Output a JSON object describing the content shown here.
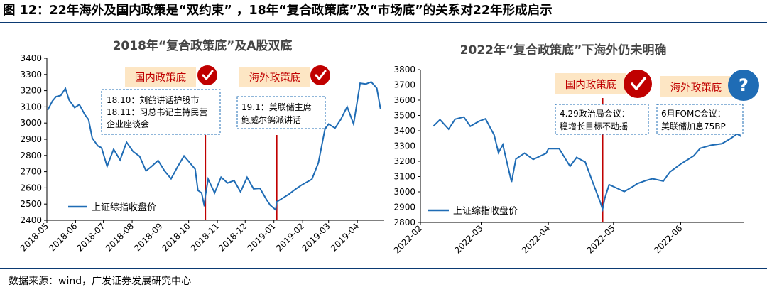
{
  "figure_title": "图 12：22年海外及国内政策是“双约束” ，18年“复合政策底”及“市场底”的关系对22年形成启示",
  "source": "数据来源：wind，广发证券发展研究中心",
  "colors": {
    "line": "#1f6cb5",
    "policy_line": "#c00000",
    "callout_text": "#c00000",
    "callout_bg": "#fde6c4",
    "check": "#c00000",
    "question": "#1f6cb5",
    "rule": "#0b3a73"
  },
  "icons": {
    "check": "check-icon",
    "question": "question-icon"
  },
  "chart_data": [
    {
      "type": "line",
      "title": "2018年“复合政策底”及A股双底",
      "ylim": [
        2400,
        3400
      ],
      "yticks": [
        2400,
        2500,
        2600,
        2700,
        2800,
        2900,
        3000,
        3100,
        3200,
        3300,
        3400
      ],
      "xlim": [
        "2018-05-01",
        "2019-04-30"
      ],
      "xticks": [
        "2018-05",
        "2018-06",
        "2018-07",
        "2018-08",
        "2018-09",
        "2018-10",
        "2018-11",
        "2018-12",
        "2019-01",
        "2019-02",
        "2019-03",
        "2019-04"
      ],
      "legend": "上证综指收盘价",
      "legend_position": "bottom-left",
      "series": [
        {
          "name": "上证综指收盘价",
          "x": [
            "2018-05-02",
            "2018-05-07",
            "2018-05-11",
            "2018-05-16",
            "2018-05-21",
            "2018-05-25",
            "2018-05-31",
            "2018-06-05",
            "2018-06-11",
            "2018-06-15",
            "2018-06-19",
            "2018-06-25",
            "2018-06-29",
            "2018-07-05",
            "2018-07-12",
            "2018-07-19",
            "2018-07-26",
            "2018-08-02",
            "2018-08-09",
            "2018-08-16",
            "2018-08-22",
            "2018-08-29",
            "2018-09-05",
            "2018-09-12",
            "2018-09-19",
            "2018-09-26",
            "2018-10-08",
            "2018-10-11",
            "2018-10-15",
            "2018-10-18",
            "2018-10-19",
            "2018-10-22",
            "2018-10-29",
            "2018-11-05",
            "2018-11-12",
            "2018-11-19",
            "2018-11-26",
            "2018-12-03",
            "2018-12-10",
            "2018-12-17",
            "2018-12-24",
            "2018-12-28",
            "2019-01-03",
            "2019-01-04",
            "2019-01-10",
            "2019-01-17",
            "2019-01-24",
            "2019-01-31",
            "2019-02-11",
            "2019-02-18",
            "2019-02-25",
            "2019-03-01",
            "2019-03-08",
            "2019-03-14",
            "2019-03-21",
            "2019-03-28",
            "2019-04-04",
            "2019-04-10",
            "2019-04-16",
            "2019-04-22",
            "2019-04-26"
          ],
          "values": [
            3081,
            3136,
            3163,
            3170,
            3214,
            3142,
            3095,
            3114,
            3052,
            3021,
            2907,
            2859,
            2847,
            2733,
            2838,
            2772,
            2882,
            2824,
            2795,
            2705,
            2733,
            2769,
            2705,
            2656,
            2730,
            2797,
            2716,
            2584,
            2568,
            2486,
            2550,
            2654,
            2569,
            2666,
            2630,
            2645,
            2575,
            2665,
            2594,
            2597,
            2527,
            2493,
            2464,
            2514,
            2535,
            2560,
            2591,
            2618,
            2653,
            2754,
            2961,
            2994,
            2969,
            3021,
            3101,
            2994,
            3246,
            3241,
            3254,
            3215,
            3086
          ]
        }
      ],
      "policy_lines": [
        {
          "date": "2018-10-19",
          "label": "国内政策底",
          "icon": "check-icon",
          "annotation": [
            "18.10：刘鹤讲话护股市",
            "18.11：习总书记主持民营",
            "企业座谈会"
          ]
        },
        {
          "date": "2019-01-04",
          "label": "海外政策底",
          "icon": "check-icon",
          "annotation": [
            "19.1：美联储主席",
            "鲍威尔鸽派讲话"
          ]
        }
      ]
    },
    {
      "type": "line",
      "title": "2022年“复合政策底”下海外仍未明确",
      "ylim": [
        2800,
        3800
      ],
      "yticks": [
        2800,
        2900,
        3000,
        3100,
        3200,
        3300,
        3400,
        3500,
        3600,
        3700,
        3800
      ],
      "xlim": [
        "2022-02-01",
        "2022-06-30"
      ],
      "xticks": [
        "2022-02",
        "2022-03",
        "2022-04",
        "2022-05",
        "2022-06"
      ],
      "legend": "上证综指收盘价",
      "legend_position": "bottom-left",
      "series": [
        {
          "name": "上证综指收盘价",
          "x": [
            "2022-02-07",
            "2022-02-10",
            "2022-02-14",
            "2022-02-17",
            "2022-02-21",
            "2022-02-24",
            "2022-02-28",
            "2022-03-03",
            "2022-03-07",
            "2022-03-09",
            "2022-03-11",
            "2022-03-15",
            "2022-03-17",
            "2022-03-21",
            "2022-03-25",
            "2022-03-31",
            "2022-04-01",
            "2022-04-06",
            "2022-04-11",
            "2022-04-14",
            "2022-04-18",
            "2022-04-21",
            "2022-04-25",
            "2022-04-26",
            "2022-04-27",
            "2022-04-29",
            "2022-05-06",
            "2022-05-10",
            "2022-05-12",
            "2022-05-16",
            "2022-05-19",
            "2022-05-24",
            "2022-05-27",
            "2022-06-01",
            "2022-06-07",
            "2022-06-10",
            "2022-06-15",
            "2022-06-20",
            "2022-06-24",
            "2022-06-27",
            "2022-06-29"
          ],
          "values": [
            3430,
            3472,
            3410,
            3476,
            3490,
            3429,
            3462,
            3478,
            3372,
            3256,
            3309,
            3064,
            3215,
            3253,
            3212,
            3252,
            3283,
            3283,
            3167,
            3225,
            3195,
            3080,
            2929,
            2886,
            2958,
            3047,
            3002,
            3035,
            3054,
            3074,
            3086,
            3070,
            3130,
            3182,
            3236,
            3285,
            3305,
            3315,
            3349,
            3379,
            3362
          ]
        }
      ],
      "policy_lines": [
        {
          "date": "2022-04-26",
          "label": "国内政策底",
          "icon": "check-icon",
          "annotation": [
            "4.29政治局会议：",
            "稳增长目标不动摇"
          ]
        }
      ],
      "pending_marker": {
        "label": "海外政策底",
        "icon": "question-icon",
        "annotation": [
          "6月FOMC会议：",
          "美联储加息75BP"
        ]
      }
    }
  ]
}
